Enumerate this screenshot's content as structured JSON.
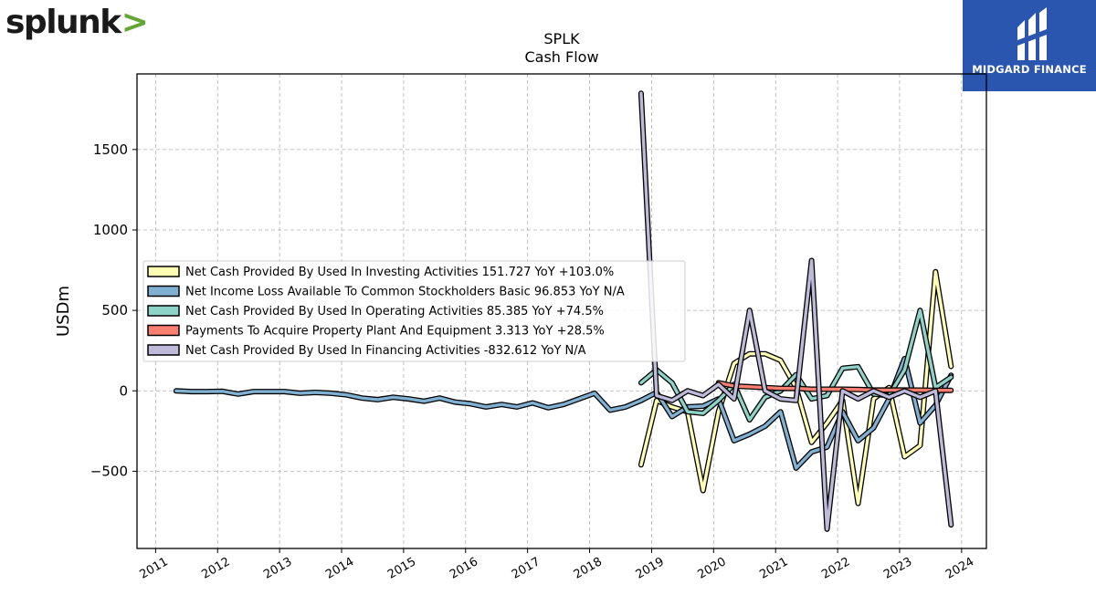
{
  "logos": {
    "left": {
      "text": "splunk",
      "chevron": ">"
    },
    "right": {
      "brand": "MIDGARD FINANCE",
      "color": "#2a56b0"
    }
  },
  "chart_data": {
    "type": "line",
    "title": "SPLK",
    "subtitle": "Cash Flow",
    "xlabel": "",
    "ylabel": "USDm",
    "xlim": [
      2010.7,
      2024.4
    ],
    "ylim": [
      -980,
      1970
    ],
    "x_ticks": [
      "2011",
      "2012",
      "2013",
      "2014",
      "2015",
      "2016",
      "2017",
      "2018",
      "2019",
      "2020",
      "2021",
      "2022",
      "2023",
      "2024"
    ],
    "y_ticks": [
      -500,
      0,
      500,
      1000,
      1500
    ],
    "grid": true,
    "legend_position": "center-left",
    "series": [
      {
        "name": "Net Cash Provided By Used In Investing Activities",
        "legend_label": "Net Cash Provided By Used In Investing Activities  151.727 YoY +103.0%",
        "color": "#ffffb3",
        "points": [
          [
            2018.83,
            -460
          ],
          [
            2019.08,
            -60
          ],
          [
            2019.33,
            -100
          ],
          [
            2019.58,
            -130
          ],
          [
            2019.83,
            -620
          ],
          [
            2020.08,
            -130
          ],
          [
            2020.33,
            170
          ],
          [
            2020.58,
            230
          ],
          [
            2020.83,
            230
          ],
          [
            2021.08,
            190
          ],
          [
            2021.33,
            20
          ],
          [
            2021.58,
            -320
          ],
          [
            2021.83,
            -200
          ],
          [
            2022.08,
            -60
          ],
          [
            2022.33,
            -700
          ],
          [
            2022.58,
            -50
          ],
          [
            2022.83,
            20
          ],
          [
            2023.08,
            -410
          ],
          [
            2023.33,
            -340
          ],
          [
            2023.58,
            740
          ],
          [
            2023.83,
            152
          ]
        ]
      },
      {
        "name": "Net Income Loss Available To Common Stockholders Basic",
        "legend_label": "Net Income Loss Available To Common Stockholders Basic  96.853 YoY N/A",
        "color": "#80b1d3",
        "points": [
          [
            2011.33,
            0
          ],
          [
            2011.58,
            -5
          ],
          [
            2011.83,
            -5
          ],
          [
            2012.08,
            -3
          ],
          [
            2012.33,
            -20
          ],
          [
            2012.58,
            -5
          ],
          [
            2012.83,
            -5
          ],
          [
            2013.08,
            -5
          ],
          [
            2013.33,
            -15
          ],
          [
            2013.58,
            -10
          ],
          [
            2013.83,
            -15
          ],
          [
            2014.08,
            -25
          ],
          [
            2014.33,
            -45
          ],
          [
            2014.58,
            -55
          ],
          [
            2014.83,
            -40
          ],
          [
            2015.08,
            -50
          ],
          [
            2015.33,
            -65
          ],
          [
            2015.58,
            -45
          ],
          [
            2015.83,
            -70
          ],
          [
            2016.08,
            -80
          ],
          [
            2016.33,
            -100
          ],
          [
            2016.58,
            -85
          ],
          [
            2016.83,
            -100
          ],
          [
            2017.08,
            -75
          ],
          [
            2017.33,
            -105
          ],
          [
            2017.58,
            -85
          ],
          [
            2017.83,
            -50
          ],
          [
            2018.08,
            -15
          ],
          [
            2018.33,
            -120
          ],
          [
            2018.58,
            -100
          ],
          [
            2018.83,
            -60
          ],
          [
            2019.08,
            -10
          ],
          [
            2019.33,
            -160
          ],
          [
            2019.58,
            -100
          ],
          [
            2019.83,
            -95
          ],
          [
            2020.08,
            -50
          ],
          [
            2020.33,
            -310
          ],
          [
            2020.58,
            -270
          ],
          [
            2020.83,
            -220
          ],
          [
            2021.08,
            -130
          ],
          [
            2021.33,
            -480
          ],
          [
            2021.58,
            -380
          ],
          [
            2021.83,
            -350
          ],
          [
            2022.08,
            -130
          ],
          [
            2022.33,
            -310
          ],
          [
            2022.58,
            -230
          ],
          [
            2022.83,
            -50
          ],
          [
            2023.08,
            200
          ],
          [
            2023.33,
            -200
          ],
          [
            2023.58,
            -90
          ],
          [
            2023.83,
            97
          ]
        ]
      },
      {
        "name": "Net Cash Provided By Used In Operating Activities",
        "legend_label": "Net Cash Provided By Used In Operating Activities  85.385 YoY +74.5%",
        "color": "#8dd3c7",
        "points": [
          [
            2018.83,
            50
          ],
          [
            2019.08,
            130
          ],
          [
            2019.33,
            50
          ],
          [
            2019.58,
            -130
          ],
          [
            2019.83,
            -140
          ],
          [
            2020.08,
            -60
          ],
          [
            2020.33,
            40
          ],
          [
            2020.58,
            -180
          ],
          [
            2020.83,
            -40
          ],
          [
            2021.08,
            0
          ],
          [
            2021.33,
            100
          ],
          [
            2021.58,
            -50
          ],
          [
            2021.83,
            -30
          ],
          [
            2022.08,
            140
          ],
          [
            2022.33,
            150
          ],
          [
            2022.58,
            -20
          ],
          [
            2022.83,
            -30
          ],
          [
            2023.08,
            130
          ],
          [
            2023.33,
            500
          ],
          [
            2023.58,
            20
          ],
          [
            2023.83,
            85
          ]
        ]
      },
      {
        "name": "Payments To Acquire Property Plant And Equipment",
        "legend_label": "Payments To Acquire Property Plant And Equipment  3.313 YoY +28.5%",
        "color": "#fb8072",
        "points": [
          [
            2020.08,
            50
          ],
          [
            2020.33,
            30
          ],
          [
            2020.58,
            25
          ],
          [
            2020.83,
            20
          ],
          [
            2021.08,
            15
          ],
          [
            2021.33,
            15
          ],
          [
            2021.58,
            10
          ],
          [
            2021.83,
            10
          ],
          [
            2022.08,
            10
          ],
          [
            2022.33,
            8
          ],
          [
            2022.58,
            5
          ],
          [
            2022.83,
            5
          ],
          [
            2023.08,
            5
          ],
          [
            2023.33,
            4
          ],
          [
            2023.58,
            3
          ],
          [
            2023.83,
            3
          ]
        ]
      },
      {
        "name": "Net Cash Provided By Used In Financing Activities",
        "legend_label": "Net Cash Provided By Used In Financing Activities  -832.612 YoY N/A",
        "color": "#bebada",
        "points": [
          [
            2018.83,
            1850
          ],
          [
            2019.08,
            -30
          ],
          [
            2019.33,
            -60
          ],
          [
            2019.58,
            0
          ],
          [
            2019.83,
            -30
          ],
          [
            2020.08,
            40
          ],
          [
            2020.33,
            -50
          ],
          [
            2020.58,
            500
          ],
          [
            2020.83,
            0
          ],
          [
            2021.08,
            -50
          ],
          [
            2021.33,
            -60
          ],
          [
            2021.58,
            810
          ],
          [
            2021.83,
            -860
          ],
          [
            2022.08,
            0
          ],
          [
            2022.33,
            -50
          ],
          [
            2022.58,
            0
          ],
          [
            2022.83,
            -40
          ],
          [
            2023.08,
            0
          ],
          [
            2023.33,
            -40
          ],
          [
            2023.58,
            0
          ],
          [
            2023.83,
            -833
          ]
        ]
      }
    ]
  }
}
